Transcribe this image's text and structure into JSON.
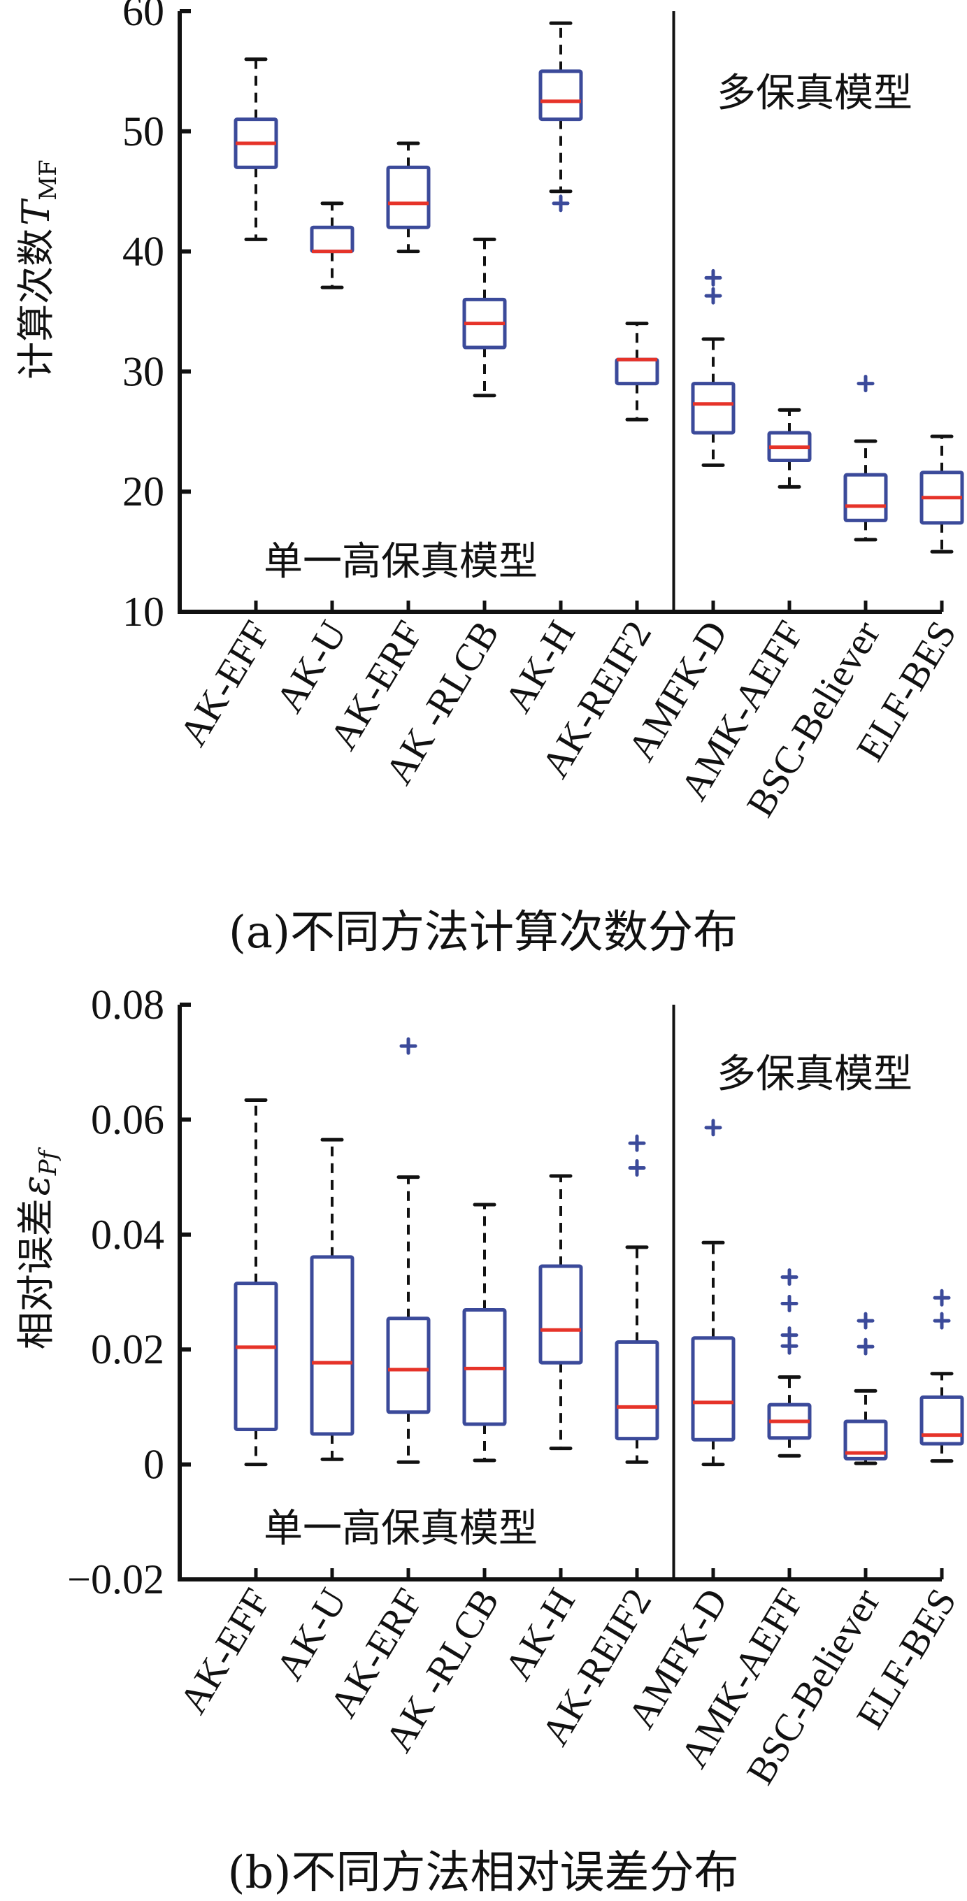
{
  "colors": {
    "box": "#3b4a9a",
    "median": "#e63329",
    "whisker": "#111111",
    "axis": "#111111",
    "outlier": "#3b4a9a"
  },
  "chart_data": [
    {
      "type": "box",
      "caption": "(a)不同方法计算次数分布",
      "ylabel": "计算次数",
      "ylabel_symbol": "T",
      "ylabel_subscript": "MF",
      "ylim": [
        10,
        60
      ],
      "yticks": [
        10,
        20,
        30,
        40,
        50,
        60
      ],
      "ytick_labels": [
        "10",
        "20",
        "30",
        "40",
        "50",
        "60"
      ],
      "annotation_left": "单一高保真模型",
      "annotation_right": "多保真模型",
      "divider_after_index": 5,
      "categories": [
        "AK-EFF",
        "AK-U",
        "AK-ERF",
        "AK -RLCB",
        "AK-H",
        "AK-REIF2",
        "AMFK-D",
        "AMK-AEFF",
        "BSC-Believer",
        "ELF-BES"
      ],
      "boxes": [
        {
          "whislo": 41,
          "q1": 47,
          "med": 49,
          "q3": 51,
          "whishi": 56,
          "fliers": []
        },
        {
          "whislo": 37,
          "q1": 40,
          "med": 40,
          "q3": 42,
          "whishi": 44,
          "fliers": []
        },
        {
          "whislo": 40,
          "q1": 42,
          "med": 44,
          "q3": 47,
          "whishi": 49,
          "fliers": []
        },
        {
          "whislo": 28,
          "q1": 32,
          "med": 34,
          "q3": 36,
          "whishi": 41,
          "fliers": []
        },
        {
          "whislo": 45,
          "q1": 51,
          "med": 52.5,
          "q3": 55,
          "whishi": 59,
          "fliers": [
            44
          ]
        },
        {
          "whislo": 26,
          "q1": 29,
          "med": 31,
          "q3": 31,
          "whishi": 34,
          "fliers": []
        },
        {
          "whislo": 22.2,
          "q1": 24.9,
          "med": 27.3,
          "q3": 29,
          "whishi": 32.7,
          "fliers": [
            36.3,
            37.8
          ]
        },
        {
          "whislo": 20.4,
          "q1": 22.6,
          "med": 23.7,
          "q3": 24.9,
          "whishi": 26.8,
          "fliers": []
        },
        {
          "whislo": 16,
          "q1": 17.6,
          "med": 18.8,
          "q3": 21.4,
          "whishi": 24.2,
          "fliers": [
            29
          ]
        },
        {
          "whislo": 15,
          "q1": 17.4,
          "med": 19.5,
          "q3": 21.6,
          "whishi": 24.6,
          "fliers": []
        }
      ]
    },
    {
      "type": "box",
      "caption": "(b)不同方法相对误差分布",
      "ylabel": "相对误差",
      "ylabel_symbol": "ε",
      "ylabel_subscript": "Pf",
      "ylim": [
        -0.02,
        0.08
      ],
      "yticks": [
        -0.02,
        0,
        0.02,
        0.04,
        0.06,
        0.08
      ],
      "ytick_labels": [
        "−0.02",
        "0",
        "0.02",
        "0.04",
        "0.06",
        "0.08"
      ],
      "annotation_left": "单一高保真模型",
      "annotation_right": "多保真模型",
      "divider_after_index": 5,
      "categories": [
        "AK-EFF",
        "AK-U",
        "AK-ERF",
        "AK -RLCB",
        "AK-H",
        "AK-REIF2",
        "AMFK-D",
        "AMK-AEFF",
        "BSC-Believer",
        "ELF-BES"
      ],
      "boxes": [
        {
          "whislo": 0.0,
          "q1": 0.0061,
          "med": 0.0204,
          "q3": 0.0315,
          "whishi": 0.0634,
          "fliers": []
        },
        {
          "whislo": 0.0009,
          "q1": 0.0053,
          "med": 0.0177,
          "q3": 0.0361,
          "whishi": 0.0565,
          "fliers": []
        },
        {
          "whislo": 0.0004,
          "q1": 0.0091,
          "med": 0.0165,
          "q3": 0.0254,
          "whishi": 0.05,
          "fliers": [
            0.0728
          ]
        },
        {
          "whislo": 0.0007,
          "q1": 0.007,
          "med": 0.0167,
          "q3": 0.0269,
          "whishi": 0.0452,
          "fliers": []
        },
        {
          "whislo": 0.0028,
          "q1": 0.0177,
          "med": 0.0234,
          "q3": 0.0345,
          "whishi": 0.0502,
          "fliers": []
        },
        {
          "whislo": 0.0004,
          "q1": 0.0045,
          "med": 0.01,
          "q3": 0.0213,
          "whishi": 0.0378,
          "fliers": [
            0.0516,
            0.0559
          ]
        },
        {
          "whislo": 0.0,
          "q1": 0.0043,
          "med": 0.0108,
          "q3": 0.022,
          "whishi": 0.0386,
          "fliers": [
            0.0586
          ]
        },
        {
          "whislo": 0.0015,
          "q1": 0.0046,
          "med": 0.0075,
          "q3": 0.0104,
          "whishi": 0.0152,
          "fliers": [
            0.0206,
            0.0225,
            0.028,
            0.0326
          ]
        },
        {
          "whislo": 0.0002,
          "q1": 0.001,
          "med": 0.002,
          "q3": 0.0075,
          "whishi": 0.0128,
          "fliers": [
            0.0205,
            0.025
          ]
        },
        {
          "whislo": 0.0006,
          "q1": 0.0036,
          "med": 0.0051,
          "q3": 0.0117,
          "whishi": 0.0158,
          "fliers": [
            0.025,
            0.029
          ]
        }
      ]
    }
  ]
}
